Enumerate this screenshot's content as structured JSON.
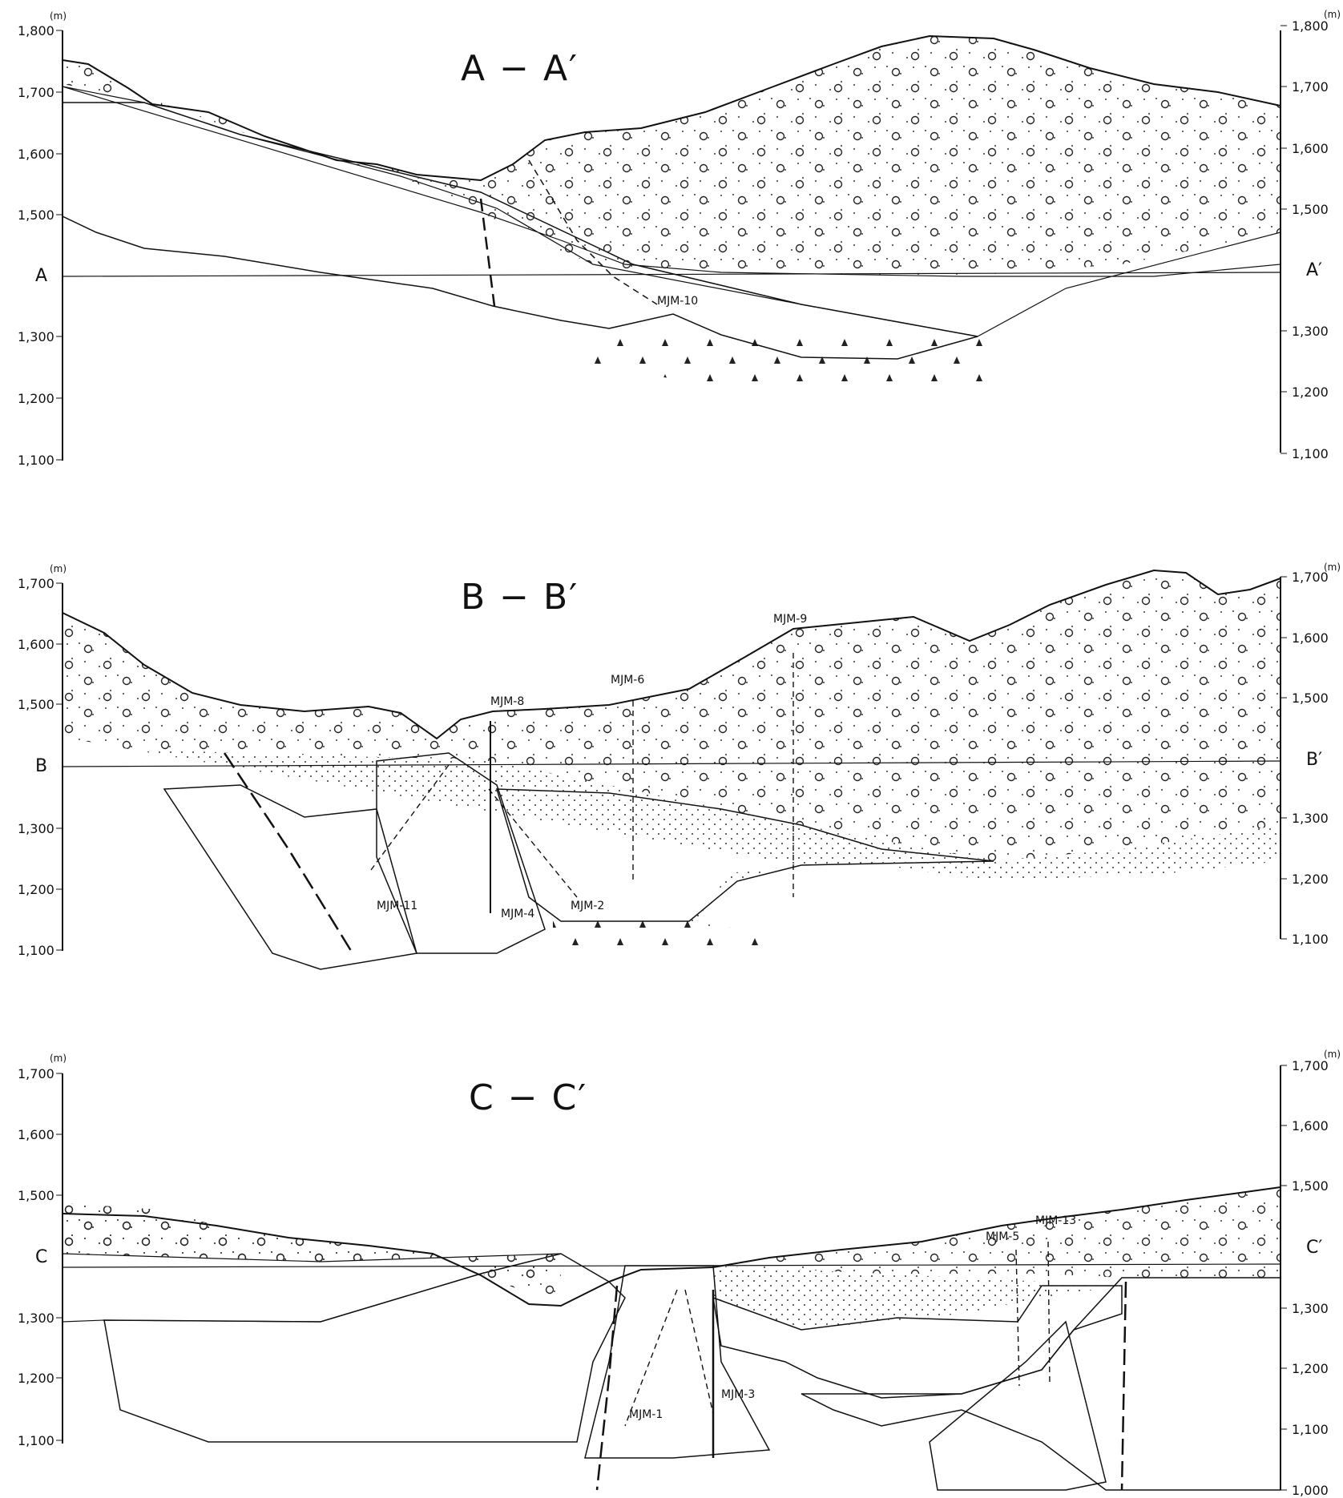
{
  "sections": [
    {
      "title": "A − A′",
      "left_end": "A",
      "right_end": "A′",
      "unit": "(m)",
      "left_ticks": [
        "1,800",
        "1,700",
        "1,600",
        "1,500",
        "A",
        "1,300",
        "1,200",
        "1,100"
      ],
      "right_ticks": [
        "1,800",
        "1,700",
        "1,600",
        "1,500",
        "A′",
        "1,300",
        "1,200",
        "1,100"
      ],
      "drillholes": [
        "MJM-10"
      ]
    },
    {
      "title": "B − B′",
      "left_end": "B",
      "right_end": "B′",
      "unit": "(m)",
      "left_ticks": [
        "1,700",
        "1,600",
        "1,500",
        "B",
        "1,300",
        "1,200",
        "1,100"
      ],
      "right_ticks": [
        "1,700",
        "1,600",
        "1,500",
        "B′",
        "1,300",
        "1,200",
        "1,100"
      ],
      "drillholes": [
        "MJM-9",
        "MJM-8",
        "MJM-6",
        "MJM-11",
        "MJM-4",
        "MJM-2"
      ]
    },
    {
      "title": "C − C′",
      "left_end": "C",
      "right_end": "C′",
      "unit": "(m)",
      "left_ticks": [
        "1,700",
        "1,600",
        "1,500",
        "C",
        "1,300",
        "1,200",
        "1,100"
      ],
      "right_ticks": [
        "1,700",
        "1,600",
        "1,500",
        "C′",
        "1,300",
        "1,200",
        "1,100",
        "1,000"
      ],
      "drillholes": [
        "MJM-5",
        "MJM-13",
        "MJM-1",
        "MJM-3"
      ]
    }
  ]
}
